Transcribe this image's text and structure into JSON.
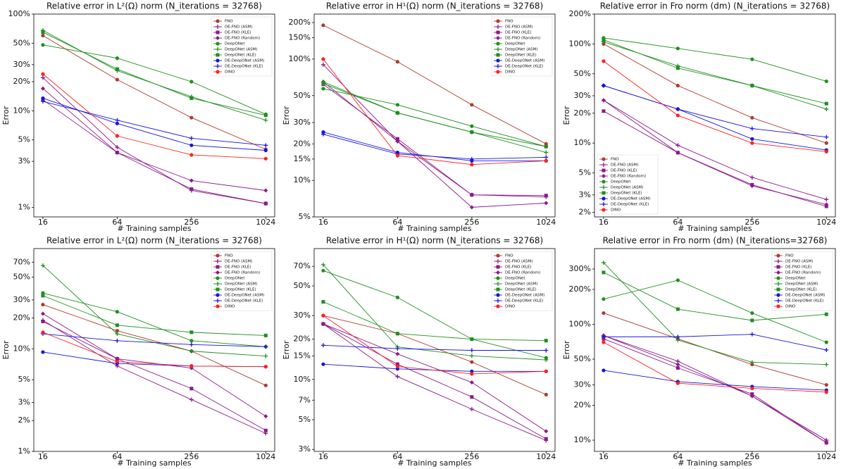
{
  "chart_data": [
    {
      "type": "line",
      "title": "Relative error in L²(Ω) norm (N_iterations = 32768)",
      "x_label": "# Training samples",
      "y_label": "Error",
      "log_x": true,
      "log_y": true,
      "legend": "upper right",
      "x": [
        16,
        64,
        256,
        1024
      ],
      "xlim": [
        13.5,
        1210
      ],
      "xticks": [
        16,
        64,
        256,
        1024
      ],
      "ylim": [
        0.8,
        100
      ],
      "yticks": [
        {
          "value": 1,
          "label": "1%"
        },
        {
          "value": 3,
          "label": "3%"
        },
        {
          "value": 5,
          "label": "5%"
        },
        {
          "value": 10,
          "label": "10%"
        },
        {
          "value": 20,
          "label": "20%"
        },
        {
          "value": 30,
          "label": "30%"
        },
        {
          "value": 50,
          "label": "50%"
        },
        {
          "value": 100,
          "label": "100%"
        }
      ],
      "series": [
        {
          "name": "FNO",
          "color": "#b03a2e",
          "marker": "circle",
          "values": [
            60,
            21,
            8.5,
            4
          ]
        },
        {
          "name": "DE-FNO (ASM)",
          "color": "#8b1a8b",
          "marker": "plus",
          "values": [
            22,
            4.2,
            1.5,
            1.1
          ]
        },
        {
          "name": "DE-FNO (KLE)",
          "color": "#8b1a8b",
          "marker": "square",
          "values": [
            13,
            3.7,
            1.55,
            1.1
          ]
        },
        {
          "name": "DE-FNO (Random)",
          "color": "#8b1a8b",
          "marker": "diamond",
          "values": [
            17,
            3.7,
            1.9,
            1.5
          ]
        },
        {
          "name": "DeepONet",
          "color": "#1f8f1f",
          "marker": "circle",
          "values": [
            48,
            35,
            20,
            9.2
          ]
        },
        {
          "name": "DeepONet (ASM)",
          "color": "#1f8f1f",
          "marker": "plus",
          "values": [
            68,
            26,
            14,
            8
          ]
        },
        {
          "name": "DeepONet (KLE)",
          "color": "#1f8f1f",
          "marker": "square",
          "values": [
            65,
            27,
            13.5,
            9
          ]
        },
        {
          "name": "DE-DeepONet (ASM)",
          "color": "#1515e0",
          "marker": "circle",
          "values": [
            13.5,
            7.4,
            4.4,
            3.9
          ]
        },
        {
          "name": "DE-DeepONet (KLE)",
          "color": "#1515e0",
          "marker": "plus",
          "values": [
            12.5,
            8,
            5.2,
            4.4
          ]
        },
        {
          "name": "DINO",
          "color": "#ff2020",
          "marker": "circle",
          "values": [
            24,
            5.5,
            3.5,
            3.2
          ]
        }
      ]
    },
    {
      "type": "line",
      "title": "Relative error in H¹(Ω) norm (N_iterations = 32768)",
      "x_label": "# Training samples",
      "y_label": "Error",
      "log_x": true,
      "log_y": true,
      "legend": "upper right",
      "x": [
        16,
        64,
        256,
        1024
      ],
      "xlim": [
        13.5,
        1210
      ],
      "xticks": [
        16,
        64,
        256,
        1024
      ],
      "ylim": [
        5,
        235
      ],
      "yticks": [
        {
          "value": 5,
          "label": "5%"
        },
        {
          "value": 10,
          "label": "10%"
        },
        {
          "value": 15,
          "label": "15%"
        },
        {
          "value": 20,
          "label": "20%"
        },
        {
          "value": 30,
          "label": "30%"
        },
        {
          "value": 50,
          "label": "50%"
        },
        {
          "value": 100,
          "label": "100%"
        },
        {
          "value": 150,
          "label": "150%"
        },
        {
          "value": 200,
          "label": "200%"
        }
      ],
      "series": [
        {
          "name": "FNO",
          "color": "#b03a2e",
          "marker": "circle",
          "values": [
            190,
            95,
            42,
            20
          ]
        },
        {
          "name": "DE-FNO (ASM)",
          "color": "#8b1a8b",
          "marker": "plus",
          "values": [
            90,
            21,
            7.6,
            7.3
          ]
        },
        {
          "name": "DE-FNO (KLE)",
          "color": "#8b1a8b",
          "marker": "square",
          "values": [
            62,
            22,
            7.6,
            7.5
          ]
        },
        {
          "name": "DE-FNO (Random)",
          "color": "#8b1a8b",
          "marker": "diamond",
          "values": [
            65,
            21,
            6,
            6.5
          ]
        },
        {
          "name": "DeepONet",
          "color": "#1f8f1f",
          "marker": "circle",
          "values": [
            57,
            42,
            28,
            19
          ]
        },
        {
          "name": "DeepONet (ASM)",
          "color": "#1f8f1f",
          "marker": "plus",
          "values": [
            65,
            36,
            25,
            17
          ]
        },
        {
          "name": "DeepONet (KLE)",
          "color": "#1f8f1f",
          "marker": "square",
          "values": [
            63,
            36,
            25,
            19
          ]
        },
        {
          "name": "DE-DeepONet (ASM)",
          "color": "#1515e0",
          "marker": "circle",
          "values": [
            25,
            17,
            14.5,
            14.5
          ]
        },
        {
          "name": "DE-DeepONet (KLE)",
          "color": "#1515e0",
          "marker": "plus",
          "values": [
            24,
            16.5,
            15,
            15.5
          ]
        },
        {
          "name": "DINO",
          "color": "#ff2020",
          "marker": "circle",
          "values": [
            100,
            16,
            13.5,
            14.5
          ]
        }
      ]
    },
    {
      "type": "line",
      "title": "Relative error in Fro norm (dm) (N_iterations = 32768)",
      "x_label": "# Training samples",
      "y_label": "Error",
      "log_x": true,
      "log_y": true,
      "legend": "lower left",
      "x": [
        16,
        64,
        256,
        1024
      ],
      "xlim": [
        13.5,
        1210
      ],
      "xticks": [
        16,
        64,
        256,
        1024
      ],
      "ylim": [
        1.8,
        200
      ],
      "yticks": [
        {
          "value": 2,
          "label": "2%"
        },
        {
          "value": 3,
          "label": "3%"
        },
        {
          "value": 5,
          "label": "5%"
        },
        {
          "value": 10,
          "label": "10%"
        },
        {
          "value": 20,
          "label": "20%"
        },
        {
          "value": 30,
          "label": "30%"
        },
        {
          "value": 50,
          "label": "50%"
        },
        {
          "value": 100,
          "label": "100%"
        },
        {
          "value": 200,
          "label": "200%"
        }
      ],
      "series": [
        {
          "name": "FNO",
          "color": "#b03a2e",
          "marker": "circle",
          "values": [
            100,
            38,
            18,
            10
          ]
        },
        {
          "name": "DE-FNO (ASM)",
          "color": "#8b1a8b",
          "marker": "plus",
          "values": [
            27,
            9.5,
            4.5,
            2.7
          ]
        },
        {
          "name": "DE-FNO (KLE)",
          "color": "#8b1a8b",
          "marker": "square",
          "values": [
            21,
            8,
            3.8,
            2.3
          ]
        },
        {
          "name": "DE-FNO (Random)",
          "color": "#8b1a8b",
          "marker": "diamond",
          "values": [
            27,
            8,
            3.7,
            2.4
          ]
        },
        {
          "name": "DeepONet",
          "color": "#1f8f1f",
          "marker": "circle",
          "values": [
            115,
            90,
            70,
            42
          ]
        },
        {
          "name": "DeepONet (ASM)",
          "color": "#1f8f1f",
          "marker": "plus",
          "values": [
            105,
            60,
            38,
            22
          ]
        },
        {
          "name": "DeepONet (KLE)",
          "color": "#1f8f1f",
          "marker": "square",
          "values": [
            110,
            57,
            38,
            25
          ]
        },
        {
          "name": "DE-DeepONet (ASM)",
          "color": "#1515e0",
          "marker": "circle",
          "values": [
            38,
            22,
            11,
            8.5
          ]
        },
        {
          "name": "DE-DeepONet (KLE)",
          "color": "#1515e0",
          "marker": "plus",
          "values": [
            38,
            22,
            14,
            11.5
          ]
        },
        {
          "name": "DINO",
          "color": "#ff2020",
          "marker": "circle",
          "values": [
            67,
            19,
            10,
            8.2
          ]
        }
      ]
    },
    {
      "type": "line",
      "title": "Relative error in L²(Ω) norm (N_iterations = 32768)",
      "x_label": "# Training samples",
      "y_label": "Error",
      "log_x": true,
      "log_y": true,
      "legend": "upper right",
      "x": [
        16,
        64,
        256,
        1024
      ],
      "xlim": [
        13.5,
        1210
      ],
      "xticks": [
        16,
        64,
        256,
        1024
      ],
      "ylim": [
        1,
        95
      ],
      "yticks": [
        {
          "value": 1,
          "label": "1%"
        },
        {
          "value": 2,
          "label": "2%"
        },
        {
          "value": 3,
          "label": "3%"
        },
        {
          "value": 5,
          "label": "5%"
        },
        {
          "value": 10,
          "label": "10%"
        },
        {
          "value": 20,
          "label": "20%"
        },
        {
          "value": 30,
          "label": "30%"
        },
        {
          "value": 50,
          "label": "50%"
        },
        {
          "value": 70,
          "label": "70%"
        }
      ],
      "series": [
        {
          "name": "FNO",
          "color": "#b03a2e",
          "marker": "circle",
          "values": [
            27,
            15,
            9.5,
            4.4
          ]
        },
        {
          "name": "DE-FNO (ASM)",
          "color": "#8b1a8b",
          "marker": "plus",
          "values": [
            19,
            6.8,
            3.2,
            1.5
          ]
        },
        {
          "name": "DE-FNO (KLE)",
          "color": "#8b1a8b",
          "marker": "square",
          "values": [
            18.5,
            8,
            4.1,
            1.6
          ]
        },
        {
          "name": "DE-FNO (Random)",
          "color": "#8b1a8b",
          "marker": "diamond",
          "values": [
            22,
            8,
            6.5,
            2.2
          ]
        },
        {
          "name": "DeepONet",
          "color": "#1f8f1f",
          "marker": "circle",
          "values": [
            35,
            23,
            12,
            10.5
          ]
        },
        {
          "name": "DeepONet (ASM)",
          "color": "#1f8f1f",
          "marker": "plus",
          "values": [
            65,
            14,
            9.5,
            8.5
          ]
        },
        {
          "name": "DeepONet (KLE)",
          "color": "#1f8f1f",
          "marker": "square",
          "values": [
            33,
            17,
            14.5,
            13.5
          ]
        },
        {
          "name": "DE-DeepONet (ASM)",
          "color": "#1515e0",
          "marker": "circle",
          "values": [
            9.3,
            7.2,
            6.8,
            6.7
          ]
        },
        {
          "name": "DE-DeepONet (KLE)",
          "color": "#1515e0",
          "marker": "plus",
          "values": [
            14,
            12,
            11,
            10.5
          ]
        },
        {
          "name": "DINO",
          "color": "#ff2020",
          "marker": "circle",
          "values": [
            14.5,
            7.5,
            6.8,
            6.7
          ]
        }
      ]
    },
    {
      "type": "line",
      "title": "Relative error in H¹(Ω) norm (N_iterations = 32768)",
      "x_label": "# Training samples",
      "y_label": "Error",
      "log_x": true,
      "log_y": true,
      "legend": "upper right",
      "x": [
        16,
        64,
        256,
        1024
      ],
      "xlim": [
        13.5,
        1210
      ],
      "xticks": [
        16,
        64,
        256,
        1024
      ],
      "ylim": [
        2.9,
        95
      ],
      "yticks": [
        {
          "value": 3,
          "label": "3%"
        },
        {
          "value": 5,
          "label": "5%"
        },
        {
          "value": 7,
          "label": "7%"
        },
        {
          "value": 10,
          "label": "10%"
        },
        {
          "value": 15,
          "label": "15%"
        },
        {
          "value": 20,
          "label": "20%"
        },
        {
          "value": 30,
          "label": "30%"
        },
        {
          "value": 50,
          "label": "50%"
        },
        {
          "value": 70,
          "label": "70%"
        }
      ],
      "series": [
        {
          "name": "FNO",
          "color": "#b03a2e",
          "marker": "circle",
          "values": [
            30,
            22,
            13.5,
            7.7
          ]
        },
        {
          "name": "DE-FNO (ASM)",
          "color": "#8b1a8b",
          "marker": "plus",
          "values": [
            26,
            10.5,
            6,
            3.5
          ]
        },
        {
          "name": "DE-FNO (KLE)",
          "color": "#8b1a8b",
          "marker": "square",
          "values": [
            26,
            13,
            7.4,
            3.6
          ]
        },
        {
          "name": "DE-FNO (Random)",
          "color": "#8b1a8b",
          "marker": "diamond",
          "values": [
            26,
            15.5,
            9.5,
            4.1
          ]
        },
        {
          "name": "DeepONet",
          "color": "#1f8f1f",
          "marker": "circle",
          "values": [
            65,
            41,
            20,
            14.5
          ]
        },
        {
          "name": "DeepONet (ASM)",
          "color": "#1f8f1f",
          "marker": "plus",
          "values": [
            72,
            17.5,
            15,
            14
          ]
        },
        {
          "name": "DeepONet (KLE)",
          "color": "#1f8f1f",
          "marker": "square",
          "values": [
            38,
            22,
            20,
            19.5
          ]
        },
        {
          "name": "DE-DeepONet (ASM)",
          "color": "#1515e0",
          "marker": "circle",
          "values": [
            13,
            12,
            11.5,
            11.5
          ]
        },
        {
          "name": "DE-DeepONet (KLE)",
          "color": "#1515e0",
          "marker": "plus",
          "values": [
            18,
            17,
            16.5,
            16.5
          ]
        },
        {
          "name": "DINO",
          "color": "#ff2020",
          "marker": "circle",
          "values": [
            30,
            12.5,
            11,
            11.5
          ]
        }
      ]
    },
    {
      "type": "line",
      "title": "Relative error in Fro norm (dm) (N_iterations=32768)",
      "x_label": "# Training samples",
      "y_label": "Error",
      "log_x": true,
      "log_y": true,
      "legend": "upper right",
      "x": [
        16,
        64,
        256,
        1024
      ],
      "xlim": [
        13.5,
        1210
      ],
      "xticks": [
        16,
        64,
        256,
        1024
      ],
      "ylim": [
        8,
        450
      ],
      "yticks": [
        {
          "value": 10,
          "label": "10%"
        },
        {
          "value": 20,
          "label": "20%"
        },
        {
          "value": 30,
          "label": "30%"
        },
        {
          "value": 50,
          "label": "50%"
        },
        {
          "value": 100,
          "label": "100%"
        },
        {
          "value": 200,
          "label": "200%"
        },
        {
          "value": 300,
          "label": "300%"
        }
      ],
      "series": [
        {
          "name": "FNO",
          "color": "#b03a2e",
          "marker": "circle",
          "values": [
            125,
            75,
            45,
            30
          ]
        },
        {
          "name": "DE-FNO (ASM)",
          "color": "#8b1a8b",
          "marker": "plus",
          "values": [
            80,
            48,
            24,
            10
          ]
        },
        {
          "name": "DE-FNO (KLE)",
          "color": "#8b1a8b",
          "marker": "square",
          "values": [
            75,
            42,
            25,
            9.5
          ]
        },
        {
          "name": "DE-FNO (Random)",
          "color": "#8b1a8b",
          "marker": "diamond",
          "values": [
            80,
            45,
            24,
            9.5
          ]
        },
        {
          "name": "DeepONet",
          "color": "#1f8f1f",
          "marker": "circle",
          "values": [
            165,
            240,
            125,
            70
          ]
        },
        {
          "name": "DeepONet (ASM)",
          "color": "#1f8f1f",
          "marker": "plus",
          "values": [
            340,
            73,
            47,
            45
          ]
        },
        {
          "name": "DeepONet (KLE)",
          "color": "#1f8f1f",
          "marker": "square",
          "values": [
            280,
            135,
            108,
            122
          ]
        },
        {
          "name": "DE-DeepONet (ASM)",
          "color": "#1515e0",
          "marker": "circle",
          "values": [
            40,
            32,
            29,
            27
          ]
        },
        {
          "name": "DE-DeepONet (KLE)",
          "color": "#1515e0",
          "marker": "plus",
          "values": [
            78,
            78,
            82,
            60
          ]
        },
        {
          "name": "DINO",
          "color": "#ff2020",
          "marker": "circle",
          "values": [
            70,
            31,
            28,
            26
          ]
        }
      ]
    }
  ]
}
